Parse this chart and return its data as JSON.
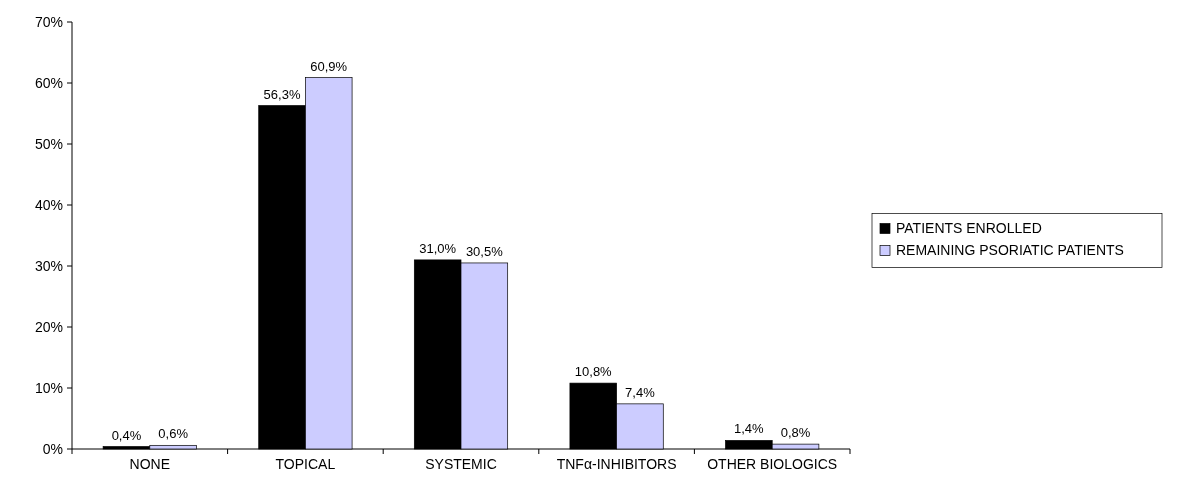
{
  "chart_data": {
    "type": "bar",
    "categories": [
      "NONE",
      "TOPICAL",
      "SYSTEMIC",
      "TNFα-INHIBITORS",
      "OTHER BIOLOGICS"
    ],
    "series": [
      {
        "name": "PATIENTS ENROLLED",
        "color": "#000000",
        "values": [
          0.4,
          56.3,
          31.0,
          10.8,
          1.4
        ],
        "value_labels": [
          "0,4%",
          "56,3%",
          "31,0%",
          "10,8%",
          "1,4%"
        ]
      },
      {
        "name": "REMAINING PSORIATIC PATIENTS",
        "color": "#ccccff",
        "values": [
          0.6,
          60.9,
          30.5,
          7.4,
          0.8
        ],
        "value_labels": [
          "0,6%",
          "60,9%",
          "30,5%",
          "7,4%",
          "0,8%"
        ]
      }
    ],
    "ylim": [
      0,
      70
    ],
    "yticks": [
      {
        "value": 0,
        "label": "0%"
      },
      {
        "value": 10,
        "label": "10%"
      },
      {
        "value": 20,
        "label": "20%"
      },
      {
        "value": 30,
        "label": "30%"
      },
      {
        "value": 40,
        "label": "40%"
      },
      {
        "value": 50,
        "label": "50%"
      },
      {
        "value": 60,
        "label": "60%"
      },
      {
        "value": 70,
        "label": "70%"
      }
    ],
    "legend": "right",
    "grid": false
  }
}
